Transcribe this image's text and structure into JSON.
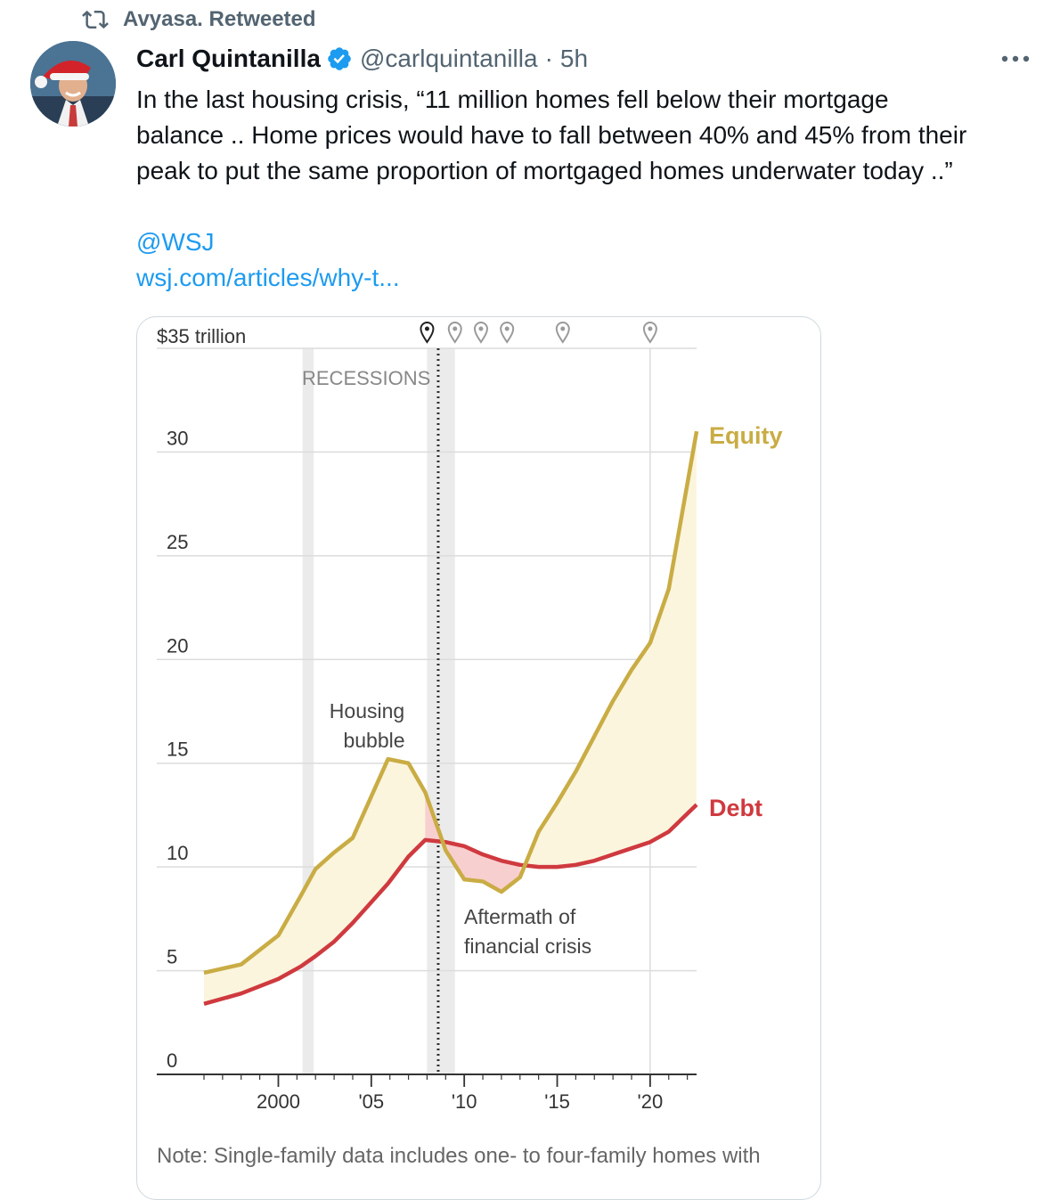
{
  "retweet": {
    "label": "Avyasa. Retweeted"
  },
  "author": {
    "name": "Carl Quintanilla",
    "handle": "@carlquintanilla",
    "separator": "·",
    "time": "5h"
  },
  "tweet": {
    "lines": [
      "In the last housing crisis, “11 million homes fell below their mortgage",
      "balance .. Home prices would have to fall between 40% and 45% from their",
      "peak to put the same proportion of mortgaged homes underwater today ..”"
    ],
    "mention": "@WSJ",
    "link": "wsj.com/articles/why-t..."
  },
  "icons": {
    "retweet": "retweet-icon",
    "verified": "verified-badge-icon",
    "more": "more-options-icon",
    "marker": "map-pin-icon"
  },
  "colors": {
    "accent": "#1d9bf0",
    "equity": "#c9ac44",
    "debt": "#cf3a3f",
    "equity_fill": "#fbf5dd",
    "debt_fill": "#f8cfcf",
    "recession": "#ebebeb"
  },
  "chart_data": {
    "type": "area",
    "unit_label": "$35 trillion",
    "y_ticks": [
      "30",
      "25",
      "20",
      "15",
      "10",
      "5",
      "0"
    ],
    "y_tick_values": [
      30,
      25,
      20,
      15,
      10,
      5,
      0
    ],
    "ylim": [
      0,
      35
    ],
    "xlim": [
      1995.7,
      2023
    ],
    "x_tick_labels": [
      "2000",
      "'05",
      "'10",
      "'15",
      "'20"
    ],
    "x_tick_values": [
      2000,
      2005,
      2010,
      2015,
      2020
    ],
    "recessions": [
      [
        2001.3,
        2001.9
      ],
      [
        2008.0,
        2009.5
      ]
    ],
    "recession_label": "RECESSIONS",
    "series": [
      {
        "name": "Equity",
        "x": [
          1996,
          1998,
          2000,
          2001.2,
          2002,
          2003,
          2004,
          2005.9,
          2007,
          2007.9,
          2009,
          2010,
          2011,
          2012,
          2013,
          2014,
          2015,
          2016,
          2017,
          2018,
          2019,
          2020,
          2021,
          2022.5
        ],
        "values": [
          4.9,
          5.3,
          6.7,
          8.6,
          9.9,
          10.7,
          11.4,
          15.2,
          15.0,
          13.6,
          10.8,
          9.4,
          9.3,
          8.8,
          9.5,
          11.7,
          13.1,
          14.6,
          16.3,
          18.0,
          19.5,
          20.8,
          23.4,
          31.0
        ]
      },
      {
        "name": "Debt",
        "x": [
          1996,
          1998,
          2000,
          2001.2,
          2002,
          2003,
          2004,
          2005.9,
          2007,
          2007.9,
          2009,
          2010,
          2011,
          2012,
          2013,
          2014,
          2015,
          2016,
          2017,
          2018,
          2019,
          2020,
          2021,
          2022.5
        ],
        "values": [
          3.4,
          3.9,
          4.6,
          5.2,
          5.7,
          6.4,
          7.3,
          9.2,
          10.5,
          11.3,
          11.2,
          11.0,
          10.6,
          10.3,
          10.1,
          10.0,
          10.0,
          10.1,
          10.3,
          10.6,
          10.9,
          11.2,
          11.7,
          13.0
        ]
      }
    ],
    "annotations": {
      "housing_bubble": [
        "Housing",
        "bubble"
      ],
      "aftermath": [
        "Aftermath of",
        "financial crisis"
      ]
    },
    "markers": [
      2008.0,
      2009.5,
      2010.9,
      2012.3,
      2015.3,
      2020.0
    ],
    "note": "Note: Single-family data includes one- to four-family homes with"
  }
}
